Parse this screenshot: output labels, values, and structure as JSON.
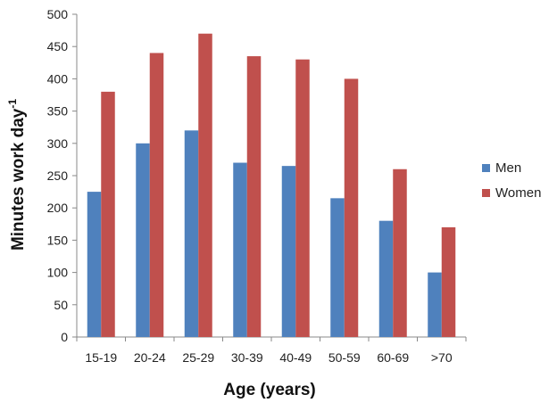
{
  "chart_data": {
    "type": "bar",
    "categories": [
      "15-19",
      "20-24",
      "25-29",
      "30-39",
      "40-49",
      "50-59",
      "60-69",
      ">70"
    ],
    "series": [
      {
        "name": "Men",
        "color": "#4F81BD",
        "values": [
          225,
          300,
          320,
          270,
          265,
          215,
          180,
          100
        ]
      },
      {
        "name": "Women",
        "color": "#C0504D",
        "values": [
          380,
          440,
          470,
          435,
          430,
          400,
          260,
          170
        ]
      }
    ],
    "xlabel": "Age (years)",
    "ylabel": "Minutes work day",
    "ylabel_superscript": "-1",
    "ylim": [
      0,
      500
    ],
    "yticks": [
      0,
      50,
      100,
      150,
      200,
      250,
      300,
      350,
      400,
      450,
      500
    ],
    "grid": false,
    "legend_position": "right"
  }
}
